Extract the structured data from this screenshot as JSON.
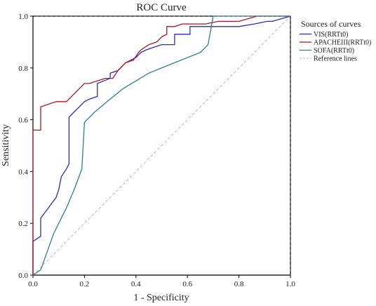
{
  "chart_data": {
    "type": "line",
    "title": "ROC Curve",
    "xlabel": "1 - Specificity",
    "ylabel": "Sensitivity",
    "xlim": [
      0,
      1
    ],
    "ylim": [
      0,
      1
    ],
    "x_ticks": [
      "0.0",
      "0.2",
      "0.4",
      "0.6",
      "0.8",
      "1.0"
    ],
    "y_ticks": [
      "0.0",
      "0.2",
      "0.4",
      "0.6",
      "0.8",
      "1.0"
    ],
    "grid": false,
    "legend": {
      "title": "Sources of curves",
      "position": "right",
      "entries": [
        "VIS(RRTt0)",
        "APACHEIII(RRTt0)",
        "SOFA(RRTt0)",
        "Reference lines"
      ]
    },
    "series": [
      {
        "name": "VIS(RRTt0)",
        "color": "#2c2cb4",
        "x": [
          0.0,
          0.0,
          0.03,
          0.03,
          0.06,
          0.09,
          0.1,
          0.11,
          0.13,
          0.14,
          0.14,
          0.16,
          0.18,
          0.2,
          0.22,
          0.25,
          0.25,
          0.3,
          0.3,
          0.33,
          0.36,
          0.4,
          0.42,
          0.44,
          0.47,
          0.5,
          0.55,
          0.55,
          0.58,
          0.61,
          0.61,
          0.65,
          0.68,
          0.75,
          0.8,
          0.86,
          0.91,
          0.93,
          1.0
        ],
        "y": [
          0.0,
          0.13,
          0.15,
          0.22,
          0.26,
          0.3,
          0.33,
          0.38,
          0.41,
          0.43,
          0.61,
          0.63,
          0.65,
          0.67,
          0.68,
          0.69,
          0.74,
          0.76,
          0.78,
          0.79,
          0.82,
          0.84,
          0.86,
          0.87,
          0.88,
          0.89,
          0.89,
          0.93,
          0.93,
          0.93,
          0.96,
          0.96,
          0.96,
          0.96,
          0.96,
          0.97,
          0.98,
          0.98,
          1.0
        ]
      },
      {
        "name": "APACHEIII(RRTt0)",
        "color": "#a31a2a",
        "x": [
          0.0,
          0.0,
          0.03,
          0.03,
          0.06,
          0.09,
          0.13,
          0.15,
          0.18,
          0.2,
          0.22,
          0.25,
          0.28,
          0.31,
          0.33,
          0.36,
          0.39,
          0.41,
          0.42,
          0.45,
          0.48,
          0.5,
          0.52,
          0.52,
          0.55,
          0.58,
          0.62,
          0.67,
          0.72,
          0.8,
          0.87,
          0.9,
          1.0
        ],
        "y": [
          0.0,
          0.56,
          0.56,
          0.65,
          0.66,
          0.67,
          0.67,
          0.69,
          0.72,
          0.74,
          0.74,
          0.75,
          0.76,
          0.76,
          0.79,
          0.82,
          0.83,
          0.86,
          0.87,
          0.89,
          0.9,
          0.92,
          0.93,
          0.96,
          0.96,
          0.97,
          0.97,
          0.97,
          0.98,
          0.98,
          1.0,
          1.0,
          1.0
        ]
      },
      {
        "name": "SOFA(RRTt0)",
        "color": "#2f7f86",
        "x": [
          0.0,
          0.03,
          0.08,
          0.1,
          0.13,
          0.16,
          0.19,
          0.2,
          0.24,
          0.3,
          0.35,
          0.45,
          0.55,
          0.65,
          0.68,
          0.7,
          1.0
        ],
        "y": [
          0.0,
          0.02,
          0.16,
          0.2,
          0.26,
          0.33,
          0.41,
          0.59,
          0.63,
          0.68,
          0.72,
          0.78,
          0.82,
          0.86,
          0.89,
          1.0,
          1.0
        ]
      },
      {
        "name": "Reference lines",
        "color": "#bbbbbb",
        "dashed": true,
        "x": [
          0,
          1
        ],
        "y": [
          0,
          1
        ]
      }
    ]
  }
}
